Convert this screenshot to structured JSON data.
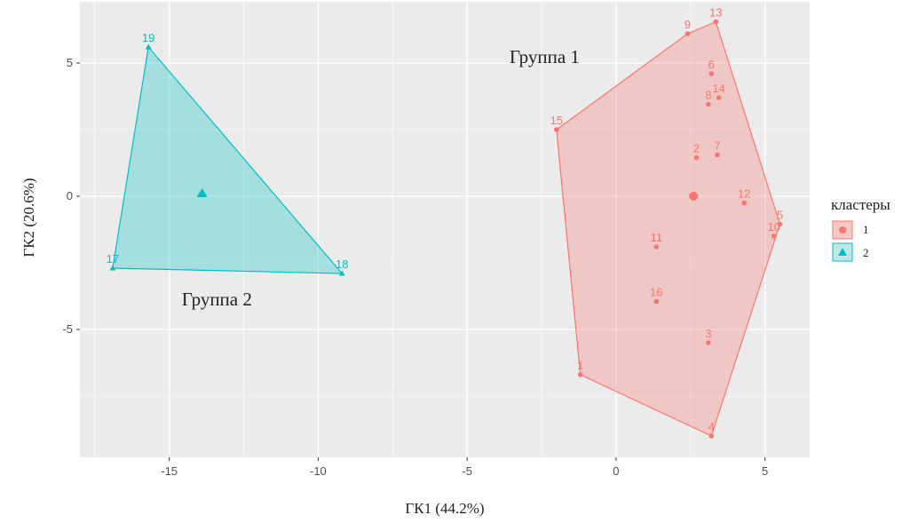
{
  "chart_data": {
    "type": "scatter",
    "xlabel": "ГК1 (44.2%)",
    "ylabel": "ГК2 (20.6%)",
    "xlim": [
      -18,
      6.5
    ],
    "ylim": [
      -9.8,
      7.3
    ],
    "xticks": [
      -15,
      -10,
      -5,
      0,
      5
    ],
    "yticks": [
      -5,
      0,
      5
    ],
    "xtick_labels": [
      "-15",
      "-10",
      "-5",
      "0",
      "5"
    ],
    "ytick_labels": [
      "-5",
      "0",
      "5"
    ],
    "grid": true,
    "legend": {
      "title": "кластеры",
      "position": "right",
      "entries": [
        "1",
        "2"
      ]
    },
    "annotations": [
      {
        "text": "Группа 1",
        "x": -2.4,
        "y": 5.0
      },
      {
        "text": "Группа 2",
        "x": -13.4,
        "y": -4.1
      }
    ],
    "series": [
      {
        "name": "1",
        "color": "#F8766D",
        "marker": "circle",
        "hull": [
          "4",
          "1",
          "15",
          "9",
          "13",
          "5"
        ],
        "centroid": {
          "x": 2.6,
          "y": 0.0
        },
        "points": [
          {
            "label": "1",
            "x": -1.2,
            "y": -6.7
          },
          {
            "label": "2",
            "x": 2.7,
            "y": 1.45
          },
          {
            "label": "3",
            "x": 3.1,
            "y": -5.5
          },
          {
            "label": "4",
            "x": 3.2,
            "y": -9.0
          },
          {
            "label": "5",
            "x": 5.5,
            "y": -1.05
          },
          {
            "label": "6",
            "x": 3.2,
            "y": 4.6
          },
          {
            "label": "7",
            "x": 3.4,
            "y": 1.55
          },
          {
            "label": "8",
            "x": 3.1,
            "y": 3.45
          },
          {
            "label": "9",
            "x": 2.4,
            "y": 6.1
          },
          {
            "label": "10",
            "x": 5.3,
            "y": -1.5
          },
          {
            "label": "11",
            "x": 1.35,
            "y": -1.9
          },
          {
            "label": "12",
            "x": 4.3,
            "y": -0.25
          },
          {
            "label": "13",
            "x": 3.35,
            "y": 6.55
          },
          {
            "label": "14",
            "x": 3.45,
            "y": 3.7
          },
          {
            "label": "15",
            "x": -2.0,
            "y": 2.5
          },
          {
            "label": "16",
            "x": 1.35,
            "y": -3.95
          }
        ]
      },
      {
        "name": "2",
        "color": "#00BFC4",
        "marker": "triangle",
        "hull": [
          "19",
          "17",
          "18"
        ],
        "centroid": {
          "x": -13.9,
          "y": 0.1
        },
        "points": [
          {
            "label": "17",
            "x": -16.9,
            "y": -2.7
          },
          {
            "label": "18",
            "x": -9.2,
            "y": -2.9
          },
          {
            "label": "19",
            "x": -15.7,
            "y": 5.6
          }
        ]
      }
    ]
  }
}
